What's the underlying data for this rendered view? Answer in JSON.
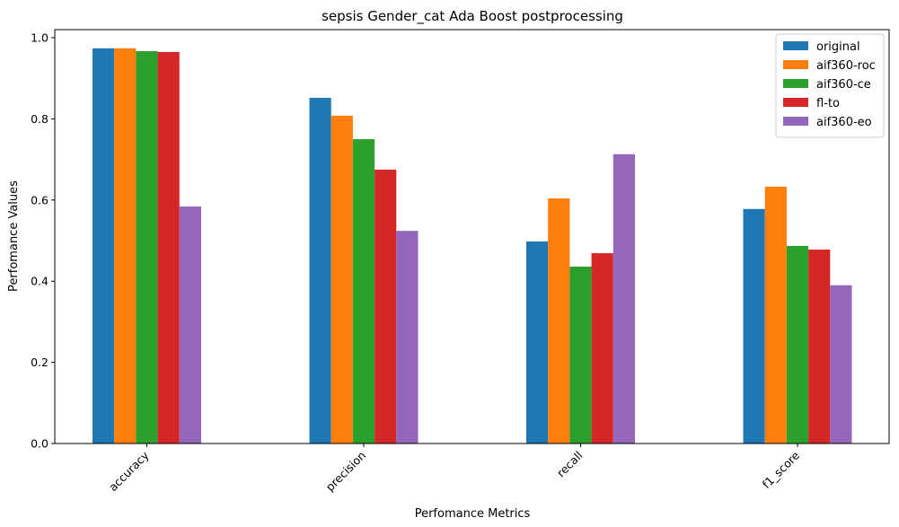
{
  "chart_data": {
    "type": "bar",
    "title": "sepsis Gender_cat Ada Boost postprocessing",
    "xlabel": "Perfomance Metrics",
    "ylabel": "Perfomance Values",
    "categories": [
      "accuracy",
      "precision",
      "recall",
      "f1_score"
    ],
    "ylim": [
      0,
      1.02
    ],
    "yticks": [
      "0.0",
      "0.2",
      "0.4",
      "0.6",
      "0.8",
      "1.0"
    ],
    "grid": false,
    "legend_position": "top-right",
    "series": [
      {
        "name": "original",
        "color": "#1f77b4",
        "values": [
          0.974,
          0.852,
          0.498,
          0.578
        ]
      },
      {
        "name": "aif360-roc",
        "color": "#ff7f0e",
        "values": [
          0.974,
          0.808,
          0.604,
          0.633
        ]
      },
      {
        "name": "aif360-ce",
        "color": "#2ca02c",
        "values": [
          0.967,
          0.75,
          0.436,
          0.487
        ]
      },
      {
        "name": "fl-to",
        "color": "#d62728",
        "values": [
          0.965,
          0.675,
          0.469,
          0.478
        ]
      },
      {
        "name": "aif360-eo",
        "color": "#9467bd",
        "values": [
          0.584,
          0.524,
          0.713,
          0.39
        ]
      }
    ]
  }
}
